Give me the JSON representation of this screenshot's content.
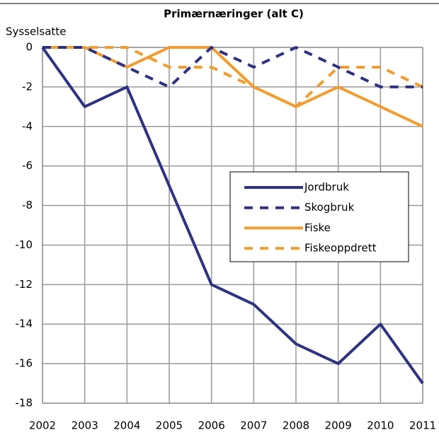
{
  "chart_data": {
    "type": "line",
    "title": "Primærnæringer (alt C)",
    "y_label": "Sysselsatte",
    "x": [
      2002,
      2003,
      2004,
      2005,
      2006,
      2007,
      2008,
      2009,
      2010,
      2011
    ],
    "xlim": [
      2002,
      2011
    ],
    "xticks": [
      2002,
      2003,
      2004,
      2005,
      2006,
      2007,
      2008,
      2009,
      2010,
      2011
    ],
    "ylim": [
      -18,
      0
    ],
    "yticks": [
      0,
      -2,
      -4,
      -6,
      -8,
      -10,
      -12,
      -14,
      -16,
      -18
    ],
    "grid": true,
    "series": [
      {
        "name": "Jordbruk",
        "color": "#2e3283",
        "dashed": false,
        "values": [
          0,
          -3,
          -2,
          -7,
          -12,
          -13,
          -15,
          -16,
          -14,
          -17
        ]
      },
      {
        "name": "Skogbruk",
        "color": "#2e3283",
        "dashed": true,
        "values": [
          0,
          0,
          -1,
          -2,
          0,
          -1,
          0,
          -1,
          -2,
          -2
        ]
      },
      {
        "name": "Fiske",
        "color": "#f39c2c",
        "dashed": false,
        "values": [
          0,
          0,
          -1,
          0,
          0,
          -2,
          -3,
          -2,
          -3,
          -4
        ]
      },
      {
        "name": "Fiskeoppdrett",
        "color": "#f39c2c",
        "dashed": true,
        "values": [
          0,
          0,
          0,
          -1,
          -1,
          -2,
          -3,
          -1,
          -1,
          -2
        ]
      }
    ]
  }
}
